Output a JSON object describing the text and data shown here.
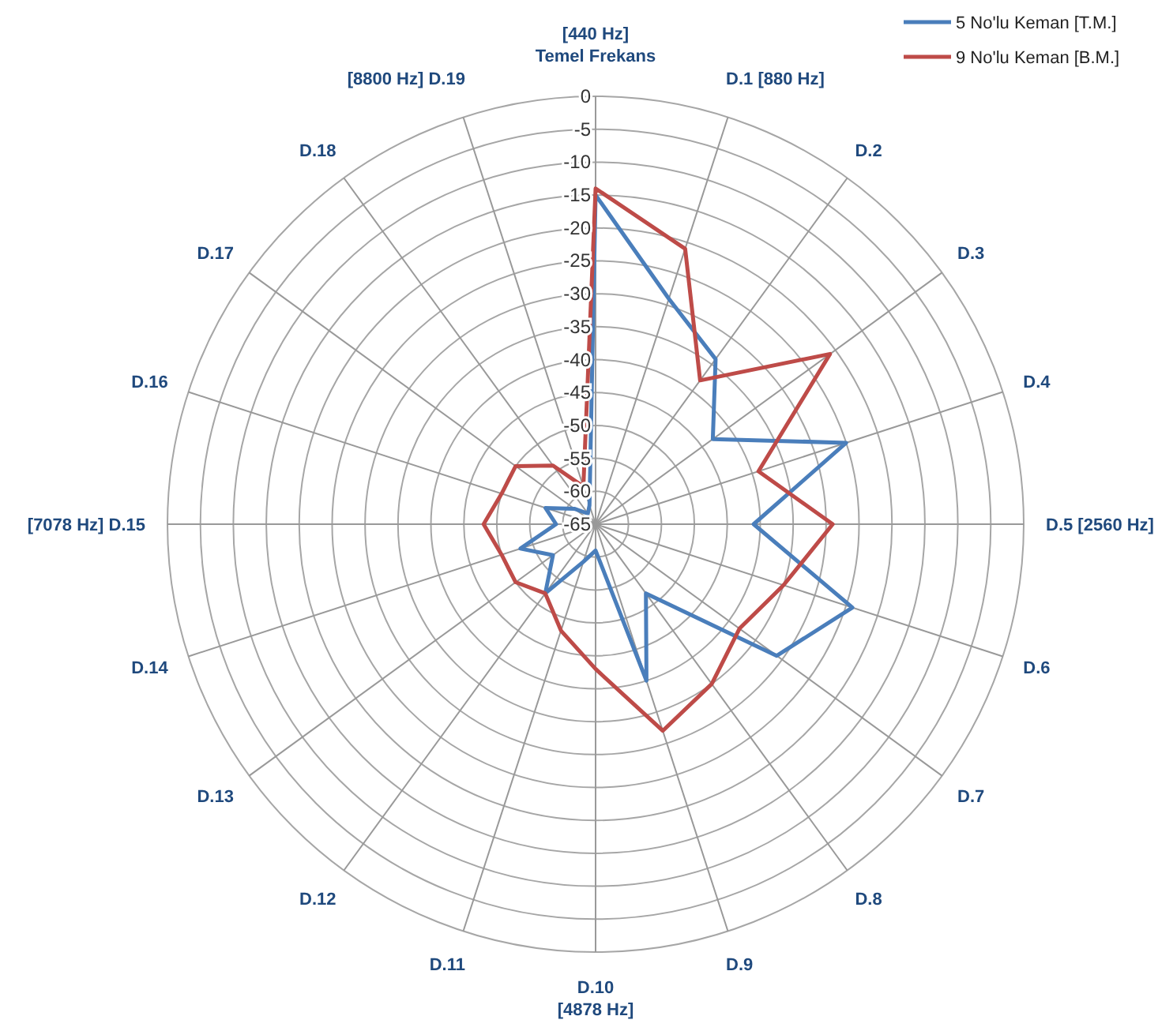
{
  "chart_data": {
    "type": "radar",
    "categories": [
      "[440 Hz]\nTemel Frekans",
      "D.1 [880 Hz]",
      "D.2",
      "D.3",
      "D.4",
      "D.5 [2560 Hz]",
      "D.6",
      "D.7",
      "D.8",
      "D.9",
      "D.10\n[4878 Hz]",
      "D.11",
      "D.12",
      "D.13",
      "D.14",
      "[7078 Hz] D.15",
      "D.16",
      "D.17",
      "D.18",
      "[8800 Hz] D.19"
    ],
    "series": [
      {
        "name": "5 No'lu Keman [T.M.]",
        "color": "#4a7ebb",
        "values": [
          -15,
          -29,
          -34,
          -43,
          -25,
          -41,
          -24,
          -31,
          -52,
          -40,
          -61,
          -59,
          -52,
          -57,
          -53,
          -59,
          -57,
          -61,
          -63,
          -62
        ]
      },
      {
        "name": "9 No'lu Keman [B.M.]",
        "color": "#be4b48",
        "values": [
          -14,
          -21,
          -38,
          -21,
          -39,
          -29,
          -35,
          -38,
          -35,
          -32,
          -43,
          -48,
          -52,
          -50,
          -50,
          -48,
          -50,
          -50,
          -54,
          -59
        ]
      }
    ],
    "ylim": [
      -65,
      0
    ],
    "yticks": [
      0,
      -5,
      -10,
      -15,
      -20,
      -25,
      -30,
      -35,
      -40,
      -45,
      -50,
      -55,
      -60,
      -65
    ],
    "grid": true,
    "legend": "top right"
  }
}
